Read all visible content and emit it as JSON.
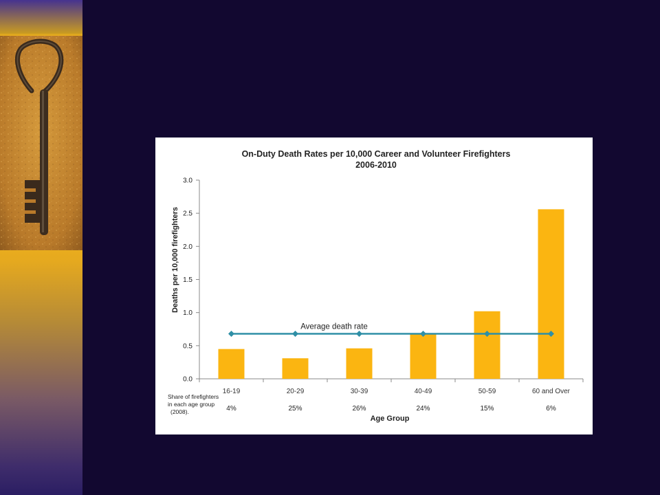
{
  "chart_data": {
    "type": "bar",
    "title": "On-Duty Death Rates per 10,000 Career and Volunteer Firefighters",
    "subtitle": "2006-2010",
    "xlabel": "Age Group",
    "ylabel": "Deaths per 10,000 firefighters",
    "ylim": [
      0,
      3.0
    ],
    "yticks": [
      "0.0",
      "0.5",
      "1.0",
      "1.5",
      "2.0",
      "2.5",
      "3.0"
    ],
    "categories": [
      "16-19",
      "20-29",
      "30-39",
      "40-49",
      "50-59",
      "60 and Over"
    ],
    "values": [
      0.45,
      0.31,
      0.46,
      0.69,
      1.02,
      2.56
    ],
    "bar_color": "#fbb511",
    "average_line": {
      "label": "Average death rate",
      "value": 0.68,
      "color": "#2f8fa6"
    },
    "share_note": [
      "Share of firefighters",
      "in each age group",
      "(2008)."
    ],
    "shares": [
      "4%",
      "25%",
      "26%",
      "24%",
      "15%",
      "6%"
    ],
    "grid": false
  }
}
